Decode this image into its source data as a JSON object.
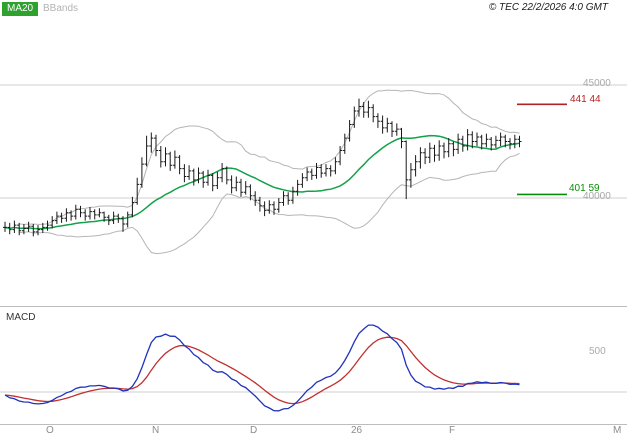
{
  "header": {
    "ma_badge": "MA20",
    "badge_color": "#2fa12f",
    "bands_label": "BBands",
    "copyright": "© TEC 22/2/2026 4:0 GMT"
  },
  "price_axis": {
    "gridlines": [
      {
        "value": 45000,
        "label": "45000"
      },
      {
        "value": 40000,
        "label": "40000"
      }
    ],
    "levels": [
      {
        "value": 44144,
        "label": "441 44",
        "color": "#b22222"
      },
      {
        "value": 40159,
        "label": "401 59",
        "color": "#0a8f0a"
      }
    ]
  },
  "macd_panel": {
    "label": "MACD",
    "axis_label": "500",
    "axis_value": 500
  },
  "x_axis": {
    "ticks": [
      {
        "label": "O",
        "index": 10
      },
      {
        "label": "N",
        "index": 32
      },
      {
        "label": "D",
        "index": 53
      },
      {
        "label": "26",
        "index": 75
      },
      {
        "label": "F",
        "index": 95
      },
      {
        "label": "M",
        "index": 130
      }
    ]
  },
  "chart_data": {
    "type": "bar",
    "subtype": "daily HLC price bars with MA20, Bollinger bands, and MACD sub-panel",
    "ylim": [
      35180,
      48760
    ],
    "indicators": {
      "ma_period": 20,
      "bb_mult": 2,
      "macd_params": [
        12,
        26,
        9
      ]
    },
    "colors": {
      "ma": "#14a14a",
      "band": "#b5b5b5",
      "bar": "#1a1a1a",
      "macd": "#2233bb",
      "signal": "#c03030",
      "grid": "#cfcfcf",
      "divider": "#bdbdbd"
    },
    "bars": [
      [
        38950,
        38500,
        38700
      ],
      [
        38900,
        38400,
        38600
      ],
      [
        39000,
        38450,
        38800
      ],
      [
        38900,
        38350,
        38550
      ],
      [
        38850,
        38400,
        38650
      ],
      [
        38950,
        38500,
        38750
      ],
      [
        38850,
        38300,
        38500
      ],
      [
        38800,
        38350,
        38600
      ],
      [
        38900,
        38450,
        38700
      ],
      [
        39000,
        38550,
        38800
      ],
      [
        39200,
        38650,
        39000
      ],
      [
        39400,
        38850,
        39200
      ],
      [
        39350,
        38900,
        39100
      ],
      [
        39550,
        38950,
        39350
      ],
      [
        39450,
        39000,
        39200
      ],
      [
        39700,
        39050,
        39500
      ],
      [
        39650,
        39150,
        39350
      ],
      [
        39500,
        39000,
        39200
      ],
      [
        39600,
        39050,
        39400
      ],
      [
        39500,
        39050,
        39250
      ],
      [
        39550,
        39150,
        39350
      ],
      [
        39400,
        38950,
        39150
      ],
      [
        39250,
        38800,
        39000
      ],
      [
        39400,
        38850,
        39200
      ],
      [
        39300,
        38900,
        39100
      ],
      [
        39200,
        38500,
        38850
      ],
      [
        39400,
        38700,
        39250
      ],
      [
        40050,
        39150,
        39800
      ],
      [
        40900,
        39700,
        40600
      ],
      [
        41800,
        40450,
        41500
      ],
      [
        42750,
        41400,
        42300
      ],
      [
        42900,
        42000,
        42650
      ],
      [
        42800,
        41850,
        42100
      ],
      [
        42300,
        41350,
        41600
      ],
      [
        42250,
        41400,
        41950
      ],
      [
        42050,
        41200,
        41450
      ],
      [
        42100,
        41300,
        41800
      ],
      [
        41900,
        41050,
        41300
      ],
      [
        41500,
        40700,
        40950
      ],
      [
        41450,
        40800,
        41200
      ],
      [
        41300,
        40550,
        40800
      ],
      [
        41350,
        40650,
        41100
      ],
      [
        41200,
        40450,
        40700
      ],
      [
        41250,
        40550,
        41000
      ],
      [
        41100,
        40300,
        40550
      ],
      [
        41150,
        40400,
        40900
      ],
      [
        41550,
        40700,
        41300
      ],
      [
        41400,
        40600,
        40800
      ],
      [
        41000,
        40200,
        40450
      ],
      [
        40950,
        40300,
        40700
      ],
      [
        40850,
        40050,
        40250
      ],
      [
        40750,
        40150,
        40500
      ],
      [
        40600,
        39900,
        40100
      ],
      [
        40300,
        39650,
        39900
      ],
      [
        40050,
        39400,
        39650
      ],
      [
        39850,
        39200,
        39450
      ],
      [
        39900,
        39300,
        39700
      ],
      [
        39850,
        39250,
        39500
      ],
      [
        40000,
        39350,
        39800
      ],
      [
        40300,
        39650,
        40100
      ],
      [
        40250,
        39700,
        39900
      ],
      [
        40500,
        39750,
        40300
      ],
      [
        40800,
        40100,
        40600
      ],
      [
        41100,
        40450,
        40900
      ],
      [
        41350,
        40750,
        41150
      ],
      [
        41300,
        40800,
        41000
      ],
      [
        41550,
        40850,
        41350
      ],
      [
        41500,
        40900,
        41100
      ],
      [
        41500,
        40950,
        41300
      ],
      [
        41450,
        40950,
        41200
      ],
      [
        41800,
        41050,
        41600
      ],
      [
        42300,
        41450,
        42100
      ],
      [
        42850,
        41950,
        42650
      ],
      [
        43450,
        42500,
        43250
      ],
      [
        44050,
        43100,
        43850
      ],
      [
        44400,
        43600,
        44050
      ],
      [
        44250,
        43550,
        43800
      ],
      [
        44300,
        43550,
        44000
      ],
      [
        44150,
        43350,
        43600
      ],
      [
        43750,
        43100,
        43400
      ],
      [
        43650,
        42850,
        43100
      ],
      [
        43550,
        42900,
        43300
      ],
      [
        43400,
        42700,
        42950
      ],
      [
        43300,
        42750,
        43050
      ],
      [
        43100,
        42200,
        42500
      ],
      [
        42550,
        39950,
        40800
      ],
      [
        41550,
        40450,
        41250
      ],
      [
        41900,
        40950,
        41600
      ],
      [
        42250,
        41300,
        42000
      ],
      [
        42200,
        41500,
        41800
      ],
      [
        42450,
        41550,
        42200
      ],
      [
        42350,
        41600,
        41900
      ],
      [
        42550,
        41650,
        42300
      ],
      [
        42450,
        41750,
        42050
      ],
      [
        42650,
        41800,
        42400
      ],
      [
        42500,
        41850,
        42150
      ],
      [
        42850,
        41950,
        42600
      ],
      [
        42750,
        42050,
        42300
      ],
      [
        43050,
        42100,
        42800
      ],
      [
        42950,
        42200,
        42500
      ],
      [
        42900,
        42300,
        42700
      ],
      [
        42800,
        42150,
        42400
      ],
      [
        42850,
        42250,
        42600
      ],
      [
        42700,
        42100,
        42350
      ],
      [
        42750,
        42200,
        42550
      ],
      [
        42900,
        42300,
        42700
      ],
      [
        42800,
        42250,
        42500
      ],
      [
        42650,
        42150,
        42400
      ],
      [
        42800,
        42200,
        42600
      ],
      [
        42750,
        42250,
        42500
      ]
    ]
  }
}
